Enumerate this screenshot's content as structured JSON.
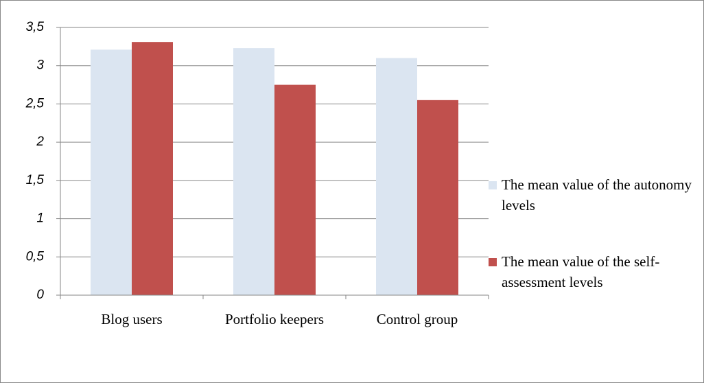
{
  "chart_data": {
    "type": "bar",
    "categories": [
      "Blog users",
      "Portfolio keepers",
      "Control group"
    ],
    "series": [
      {
        "name": "The mean value of the autonomy levels",
        "color": "#dbe5f1",
        "values": [
          3.21,
          3.23,
          3.1
        ]
      },
      {
        "name": "The mean value of the self-assessment levels",
        "color": "#c0504d",
        "values": [
          3.31,
          2.75,
          2.55
        ]
      }
    ],
    "ylim": [
      0,
      3.5
    ],
    "yticks": [
      0,
      {
        "value": 0.5,
        "label": "0,5"
      },
      1,
      {
        "value": 1.5,
        "label": "1,5"
      },
      2,
      {
        "value": 2.5,
        "label": "2,5"
      },
      3,
      {
        "value": 3.5,
        "label": "3,5"
      }
    ],
    "grid": true,
    "legend": "right"
  }
}
